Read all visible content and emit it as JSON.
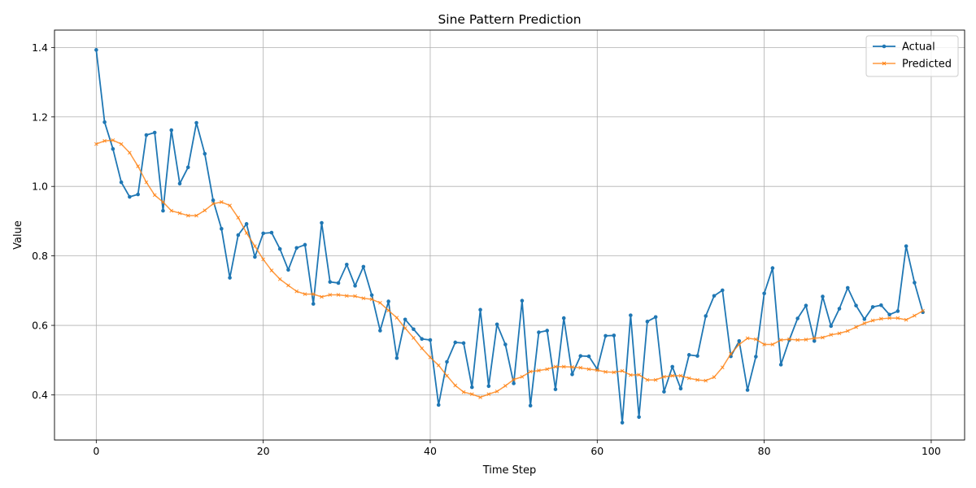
{
  "chart_data": {
    "type": "line",
    "title": "Sine Pattern Prediction",
    "xlabel": "Time Step",
    "ylabel": "Value",
    "xlim": [
      -5,
      104
    ],
    "ylim": [
      0.27,
      1.45
    ],
    "xticks": [
      0,
      20,
      40,
      60,
      80,
      100
    ],
    "yticks": [
      0.4,
      0.6,
      0.8,
      1.0,
      1.2,
      1.4
    ],
    "grid": true,
    "legend_position": "top-right",
    "series": [
      {
        "name": "Actual",
        "color": "#1f77b4",
        "marker": "circle",
        "values": [
          1.393,
          1.185,
          1.108,
          1.012,
          0.97,
          0.977,
          1.148,
          1.155,
          0.93,
          1.162,
          1.008,
          1.055,
          1.183,
          1.094,
          0.96,
          0.878,
          0.737,
          0.86,
          0.892,
          0.797,
          0.865,
          0.867,
          0.82,
          0.76,
          0.823,
          0.832,
          0.662,
          0.895,
          0.725,
          0.722,
          0.775,
          0.714,
          0.769,
          0.687,
          0.585,
          0.669,
          0.506,
          0.617,
          0.589,
          0.561,
          0.558,
          0.371,
          0.495,
          0.551,
          0.549,
          0.422,
          0.645,
          0.425,
          0.603,
          0.545,
          0.433,
          0.671,
          0.369,
          0.58,
          0.585,
          0.416,
          0.621,
          0.459,
          0.512,
          0.511,
          0.474,
          0.57,
          0.571,
          0.32,
          0.629,
          0.336,
          0.611,
          0.624,
          0.409,
          0.481,
          0.418,
          0.515,
          0.512,
          0.627,
          0.685,
          0.701,
          0.511,
          0.555,
          0.414,
          0.51,
          0.692,
          0.765,
          0.487,
          0.558,
          0.62,
          0.657,
          0.555,
          0.683,
          0.598,
          0.648,
          0.708,
          0.657,
          0.618,
          0.653,
          0.658,
          0.631,
          0.641,
          0.828,
          0.723,
          0.638
        ]
      },
      {
        "name": "Predicted",
        "color": "#ff7f0e",
        "marker": "x",
        "values": [
          1.122,
          1.131,
          1.133,
          1.122,
          1.097,
          1.058,
          1.012,
          0.975,
          0.955,
          0.93,
          0.923,
          0.916,
          0.916,
          0.931,
          0.95,
          0.955,
          0.945,
          0.91,
          0.866,
          0.828,
          0.79,
          0.758,
          0.733,
          0.715,
          0.698,
          0.69,
          0.69,
          0.682,
          0.688,
          0.688,
          0.685,
          0.684,
          0.678,
          0.675,
          0.665,
          0.643,
          0.622,
          0.592,
          0.564,
          0.534,
          0.508,
          0.485,
          0.455,
          0.427,
          0.408,
          0.402,
          0.393,
          0.402,
          0.41,
          0.426,
          0.444,
          0.452,
          0.467,
          0.47,
          0.474,
          0.481,
          0.481,
          0.48,
          0.478,
          0.474,
          0.471,
          0.466,
          0.465,
          0.469,
          0.457,
          0.458,
          0.443,
          0.443,
          0.452,
          0.455,
          0.455,
          0.448,
          0.443,
          0.441,
          0.451,
          0.479,
          0.518,
          0.545,
          0.563,
          0.56,
          0.545,
          0.545,
          0.558,
          0.56,
          0.558,
          0.559,
          0.563,
          0.565,
          0.573,
          0.577,
          0.584,
          0.595,
          0.606,
          0.614,
          0.619,
          0.621,
          0.621,
          0.616,
          0.628,
          0.642
        ]
      }
    ]
  }
}
